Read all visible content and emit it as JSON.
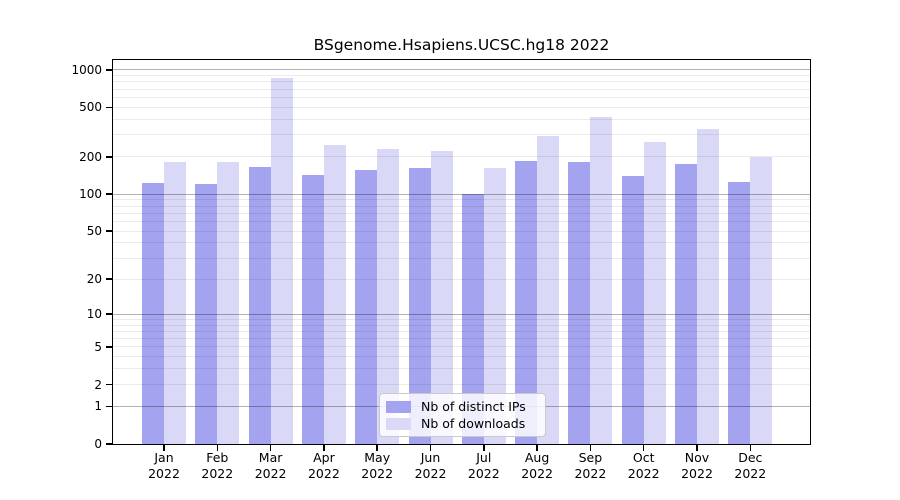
{
  "title": "BSgenome.Hsapiens.UCSC.hg18 2022",
  "colors": {
    "distinct_ips_bar": "#a3a3f0",
    "downloads_bar": "#d9d9f7",
    "axis": "#000000",
    "grid_major": "rgba(0,0,0,0.30)",
    "grid_minor": "rgba(0,0,0,0.08)"
  },
  "legend": {
    "items": [
      {
        "key": "ips",
        "label": "Nb of distinct IPs",
        "color": "#a3a3f0"
      },
      {
        "key": "downloads",
        "label": "Nb of downloads",
        "color": "#d9d9f7"
      }
    ]
  },
  "chart_data": {
    "type": "bar",
    "title": "BSgenome.Hsapiens.UCSC.hg18 2022",
    "categories": [
      "Jan",
      "Feb",
      "Mar",
      "Apr",
      "May",
      "Jun",
      "Jul",
      "Aug",
      "Sep",
      "Oct",
      "Nov",
      "Dec"
    ],
    "category_year": "2022",
    "series": [
      {
        "name": "Nb of distinct IPs",
        "values": [
          122,
          120,
          165,
          143,
          157,
          162,
          100,
          185,
          183,
          140,
          175,
          125
        ]
      },
      {
        "name": "Nb of downloads",
        "values": [
          180,
          180,
          860,
          250,
          232,
          224,
          161,
          295,
          420,
          265,
          335,
          199
        ]
      }
    ],
    "xlabel": "",
    "ylabel": "",
    "yscale": "log1p",
    "yticks": [
      0,
      1,
      2,
      5,
      10,
      20,
      50,
      100,
      200,
      500,
      1000
    ],
    "ylim": [
      0,
      1200
    ],
    "grid": "horizontal, minor log lines, drawn over bars",
    "legend_position": "bottom-center-inside"
  }
}
